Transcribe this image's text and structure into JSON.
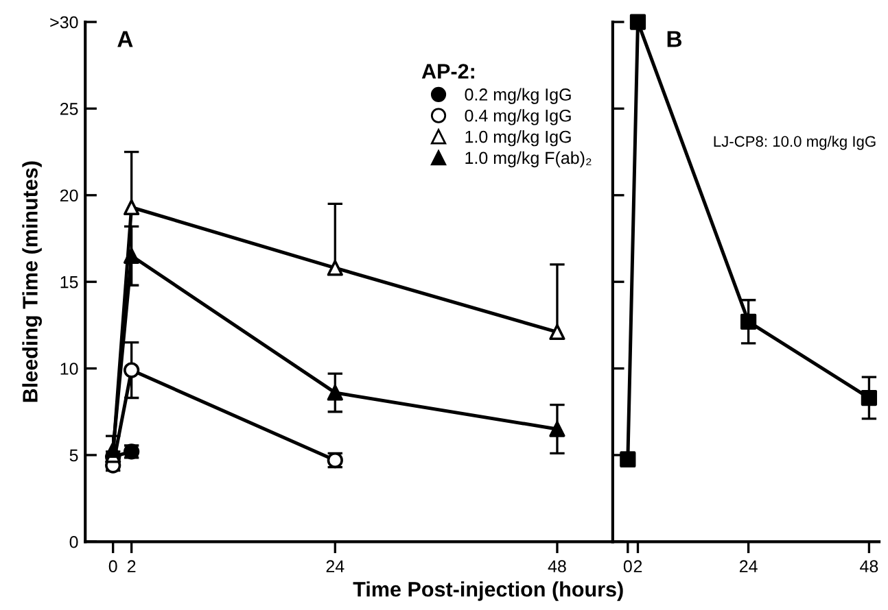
{
  "chart_data": [
    {
      "type": "line",
      "title": "A",
      "xlabel": "Time Post-injection (hours)",
      "ylabel": "Bleeding Time (minutes)",
      "legend_title": "AP-2:",
      "legend": "top right",
      "xlim": [
        -3,
        54
      ],
      "xticks": [
        0,
        2,
        24,
        48
      ],
      "ylim": [
        0,
        30
      ],
      "yticks": [
        0,
        5,
        10,
        15,
        20,
        25,
        {
          "value": 30,
          "label": ">30"
        }
      ],
      "series": [
        {
          "name": "0.2 mg/kg IgG",
          "color": "#000000",
          "marker": "circle",
          "colors": [
            "#000000",
            "#000000"
          ],
          "x": [
            0,
            2
          ],
          "values": [
            4.9,
            5.2
          ],
          "errors": [
            0.3,
            0.35
          ]
        },
        {
          "name": "0.4 mg/kg IgG",
          "color": "#000000",
          "marker": "circle",
          "colors": [
            "#ffffff",
            "#ffffff",
            "#ffffff"
          ],
          "x": [
            0,
            2,
            24
          ],
          "values": [
            4.4,
            9.9,
            4.7
          ],
          "errors": [
            0.3,
            1.6,
            0.4
          ]
        },
        {
          "name": "1.0 mg/kg IgG",
          "color": "#000000",
          "marker": "triangle",
          "colors": [
            "#ffffff",
            "#ffffff",
            "#ffffff",
            "#ffffff"
          ],
          "x": [
            0,
            2,
            24,
            48
          ],
          "values": [
            5.0,
            19.3,
            15.8,
            12.1
          ],
          "errors": [
            null,
            [
              19.3,
              22.5
            ],
            [
              15.8,
              19.5
            ],
            [
              12.1,
              16.0
            ]
          ]
        },
        {
          "name": "1.0 mg/kg F(ab)₂",
          "color": "#000000",
          "marker": "triangle",
          "colors": [
            "#000000",
            "#000000",
            "#000000",
            "#000000"
          ],
          "x": [
            0,
            2,
            24,
            48
          ],
          "values": [
            5.3,
            16.5,
            8.6,
            6.5
          ],
          "errors": [
            [
              5.3,
              6.1
            ],
            1.7,
            1.1,
            1.4
          ]
        }
      ]
    },
    {
      "type": "line",
      "title": "B",
      "tick_labels": "x",
      "xlim": [
        -3,
        50
      ],
      "xticks": [
        0,
        2,
        24,
        48
      ],
      "ylim": [
        0,
        30
      ],
      "yticks": [
        0,
        5,
        10,
        15,
        20,
        25,
        30
      ],
      "series": [
        {
          "name": "LJ-CP8: 10.0 mg/kg IgG",
          "color": "#000000",
          "marker": "square",
          "colors": [
            "#000000",
            "#000000",
            "#000000",
            "#000000"
          ],
          "x": [
            0,
            2,
            24,
            48
          ],
          "values": [
            4.75,
            30,
            12.7,
            8.3
          ],
          "errors": [
            0.4,
            null,
            1.25,
            1.2
          ]
        }
      ]
    }
  ]
}
